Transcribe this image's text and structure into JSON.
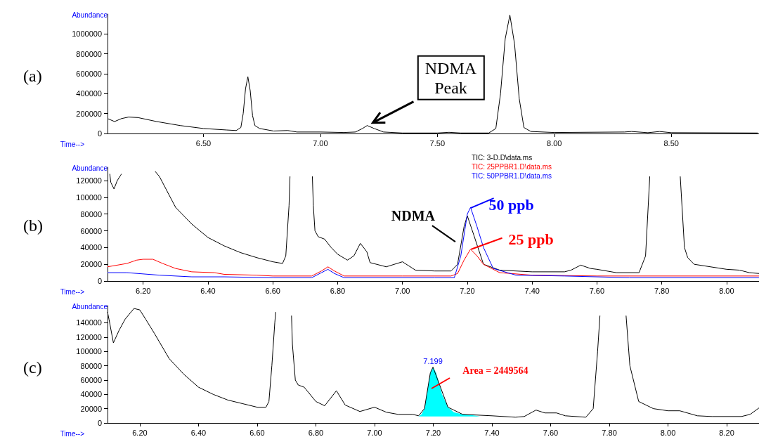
{
  "chart_data": [
    {
      "type": "line",
      "title": "(a)",
      "xlabel": "Time-->",
      "ylabel": "Abundance",
      "xlim": [
        6.09,
        8.875
      ],
      "ylim": [
        0,
        1200000
      ],
      "xticks": [
        {
          "value": 6.5,
          "label": "6.50"
        },
        {
          "value": 7,
          "label": "7.00"
        },
        {
          "value": 7.5,
          "label": "7.50"
        },
        {
          "value": 8,
          "label": "8.00"
        },
        {
          "value": 8.5,
          "label": "8.50"
        }
      ],
      "yticks": [
        0,
        200000,
        400000,
        600000,
        800000,
        1000000
      ],
      "grid": false,
      "legend": false,
      "marker": "none",
      "line_style": "solid",
      "annotations": [
        {
          "text": "NDMA\nPeak",
          "x": 7.2,
          "y": 80000
        }
      ],
      "series": [
        {
          "color": "#000000",
          "x": [
            6.09,
            6.12,
            6.15,
            6.18,
            6.22,
            6.3,
            6.4,
            6.5,
            6.6,
            6.64,
            6.66,
            6.67,
            6.68,
            6.69,
            6.7,
            6.71,
            6.72,
            6.74,
            6.8,
            6.86,
            6.9,
            7.0,
            7.1,
            7.15,
            7.18,
            7.2,
            7.23,
            7.27,
            7.35,
            7.5,
            7.55,
            7.6,
            7.72,
            7.75,
            7.77,
            7.79,
            7.81,
            7.83,
            7.85,
            7.87,
            7.9,
            8.0,
            8.3,
            8.33,
            8.4,
            8.45,
            8.5,
            8.87
          ],
          "values": [
            150000,
            120000,
            150000,
            165000,
            160000,
            120000,
            80000,
            50000,
            35000,
            30000,
            60000,
            200000,
            450000,
            570000,
            430000,
            180000,
            80000,
            50000,
            25000,
            30000,
            15000,
            15000,
            10000,
            15000,
            50000,
            80000,
            50000,
            15000,
            5000,
            5000,
            12000,
            5000,
            5000,
            50000,
            400000,
            950000,
            1190000,
            900000,
            350000,
            60000,
            20000,
            10000,
            15000,
            20000,
            8000,
            20000,
            8000,
            5000
          ]
        }
      ]
    },
    {
      "type": "line",
      "title": "(b)",
      "xlabel": "Time-->",
      "ylabel": "Abundance",
      "xlim": [
        6.09,
        8.1
      ],
      "ylim": [
        0,
        136000
      ],
      "xticks": [
        {
          "value": 6.2,
          "label": "6.20"
        },
        {
          "value": 6.4,
          "label": "6.40"
        },
        {
          "value": 6.6,
          "label": "6.60"
        },
        {
          "value": 6.8,
          "label": "6.80"
        },
        {
          "value": 7,
          "label": "7.00"
        },
        {
          "value": 7.2,
          "label": "7.20"
        },
        {
          "value": 7.4,
          "label": "7.40"
        },
        {
          "value": 7.6,
          "label": "7.60"
        },
        {
          "value": 7.8,
          "label": "7.80"
        },
        {
          "value": 8,
          "label": "8.00"
        }
      ],
      "yticks": [
        0,
        20000,
        40000,
        60000,
        80000,
        100000,
        120000
      ],
      "grid": false,
      "legend": "top",
      "marker": "none",
      "line_style": "solid",
      "annotations": [
        {
          "text": "NDMA",
          "x": 7.2,
          "y": 78000
        },
        {
          "text": "50 ppb",
          "x": 7.21,
          "y": 88000
        },
        {
          "text": "25 ppb",
          "x": 7.21,
          "y": 38000
        }
      ],
      "series": [
        {
          "name": "TIC: 3-D.D\\data.ms",
          "color": "#000000",
          "x": [
            6.097,
            6.1,
            6.11,
            6.12,
            6.13,
            6.133,
            6.14,
            6.237,
            6.25,
            6.3,
            6.35,
            6.4,
            6.45,
            6.5,
            6.55,
            6.6,
            6.63,
            6.64,
            6.65,
            6.653,
            6.69,
            6.722,
            6.725,
            6.73,
            6.74,
            6.76,
            6.78,
            6.8,
            6.83,
            6.85,
            6.87,
            6.89,
            6.9,
            6.95,
            7.0,
            7.02,
            7.04,
            7.1,
            7.15,
            7.17,
            7.19,
            7.2,
            7.22,
            7.25,
            7.3,
            7.4,
            7.5,
            7.52,
            7.55,
            7.58,
            7.6,
            7.66,
            7.73,
            7.75,
            7.763,
            7.81,
            7.857,
            7.87,
            7.88,
            7.9,
            8.0,
            8.04,
            8.07,
            8.1
          ],
          "values": [
            128000,
            118000,
            110000,
            120000,
            126000,
            128000,
            null,
            131000,
            125000,
            88000,
            68000,
            52000,
            42000,
            34000,
            28000,
            23000,
            21000,
            30000,
            90000,
            125000,
            null,
            125000,
            90000,
            60000,
            53000,
            50000,
            40000,
            32000,
            25000,
            30000,
            45000,
            35000,
            22000,
            17000,
            23000,
            18000,
            13000,
            12000,
            12000,
            20000,
            65000,
            78000,
            55000,
            20000,
            13000,
            11000,
            11000,
            13000,
            19000,
            15000,
            14000,
            10000,
            10000,
            30000,
            125000,
            null,
            125000,
            40000,
            28000,
            20000,
            14000,
            13000,
            10000,
            9000
          ]
        },
        {
          "name": "TIC: 25PPBR1.D\\data.ms",
          "color": "#ff0000",
          "x": [
            6.09,
            6.15,
            6.18,
            6.2,
            6.23,
            6.26,
            6.3,
            6.35,
            6.42,
            6.45,
            6.55,
            6.6,
            6.72,
            6.75,
            6.77,
            6.79,
            6.82,
            7.0,
            7.15,
            7.17,
            7.19,
            7.21,
            7.23,
            7.25,
            7.3,
            7.4,
            7.6,
            8.1
          ],
          "values": [
            17000,
            21000,
            25000,
            26000,
            26000,
            21000,
            15000,
            11000,
            10000,
            8000,
            7000,
            6000,
            6000,
            12000,
            17000,
            12000,
            6000,
            6000,
            6000,
            9000,
            25000,
            38000,
            30000,
            20000,
            10000,
            7000,
            6000,
            6000
          ]
        },
        {
          "name": "TIC: 50PPBR1.D\\data.ms",
          "color": "#0000ff",
          "x": [
            6.09,
            6.15,
            6.25,
            6.35,
            6.45,
            6.6,
            6.72,
            6.75,
            6.77,
            6.79,
            6.82,
            7.1,
            7.16,
            7.18,
            7.2,
            7.21,
            7.23,
            7.25,
            7.28,
            7.35,
            7.5,
            7.7,
            8.1
          ],
          "values": [
            10000,
            10000,
            7000,
            5000,
            5000,
            4000,
            4000,
            10000,
            14000,
            9000,
            4000,
            4000,
            4000,
            30000,
            80000,
            88000,
            65000,
            40000,
            15000,
            7000,
            6000,
            4000,
            4000
          ]
        }
      ]
    },
    {
      "type": "line",
      "title": "(c)",
      "xlabel": "Time-->",
      "ylabel": "Abundance",
      "xlim": [
        6.09,
        8.31
      ],
      "ylim": [
        0,
        164000
      ],
      "xticks": [
        {
          "value": 6.2,
          "label": "6.20"
        },
        {
          "value": 6.4,
          "label": "6.40"
        },
        {
          "value": 6.6,
          "label": "6.60"
        },
        {
          "value": 6.8,
          "label": "6.80"
        },
        {
          "value": 7,
          "label": "7.00"
        },
        {
          "value": 7.2,
          "label": "7.20"
        },
        {
          "value": 7.4,
          "label": "7.40"
        },
        {
          "value": 7.6,
          "label": "7.60"
        },
        {
          "value": 7.8,
          "label": "7.80"
        },
        {
          "value": 8,
          "label": "8.00"
        },
        {
          "value": 8.2,
          "label": "8.20"
        }
      ],
      "yticks": [
        0,
        20000,
        40000,
        60000,
        80000,
        100000,
        120000,
        140000
      ],
      "grid": false,
      "legend": false,
      "marker": "none",
      "line_style": "solid",
      "annotations": [
        {
          "text": "7.199",
          "x": 7.199,
          "y": 78000
        },
        "Area = 2449564"
      ],
      "series": [
        {
          "color": "#000000",
          "x": [
            6.09,
            6.095,
            6.11,
            6.13,
            6.15,
            6.18,
            6.2,
            6.22,
            6.25,
            6.3,
            6.35,
            6.4,
            6.45,
            6.5,
            6.55,
            6.6,
            6.63,
            6.64,
            6.65,
            6.66,
            6.663,
            6.69,
            6.717,
            6.72,
            6.73,
            6.74,
            6.76,
            6.8,
            6.83,
            6.87,
            6.9,
            6.95,
            7.0,
            7.04,
            7.08,
            7.13,
            7.15,
            7.17,
            7.19,
            7.199,
            7.22,
            7.25,
            7.3,
            7.4,
            7.48,
            7.51,
            7.55,
            7.58,
            7.62,
            7.65,
            7.72,
            7.745,
            7.76,
            7.768,
            7.81,
            7.857,
            7.87,
            7.9,
            7.95,
            8.0,
            8.04,
            8.1,
            8.15,
            8.25,
            8.28,
            8.31
          ],
          "values": [
            155000,
            145000,
            112000,
            130000,
            145000,
            160000,
            158000,
            145000,
            125000,
            90000,
            68000,
            50000,
            40000,
            32000,
            27000,
            22000,
            22000,
            30000,
            80000,
            140000,
            155000,
            null,
            150000,
            110000,
            60000,
            53000,
            50000,
            30000,
            24000,
            45000,
            25000,
            16000,
            22000,
            15000,
            12000,
            12000,
            10000,
            20000,
            70000,
            78000,
            55000,
            22000,
            12000,
            10000,
            8000,
            9000,
            18000,
            14000,
            14000,
            10000,
            8000,
            20000,
            100000,
            150000,
            null,
            150000,
            80000,
            30000,
            20000,
            17000,
            17000,
            10000,
            9000,
            9000,
            12000,
            21000
          ]
        },
        {
          "type": "area",
          "color": "#00ffff",
          "x": [
            7.15,
            7.16,
            7.17,
            7.18,
            7.19,
            7.199,
            7.21,
            7.22,
            7.23,
            7.25,
            7.27,
            7.3,
            7.33,
            7.36
          ],
          "values": [
            9000,
            12000,
            20000,
            45000,
            70000,
            78000,
            70000,
            55000,
            40000,
            22000,
            15000,
            12000,
            11000,
            9000
          ]
        }
      ]
    }
  ]
}
